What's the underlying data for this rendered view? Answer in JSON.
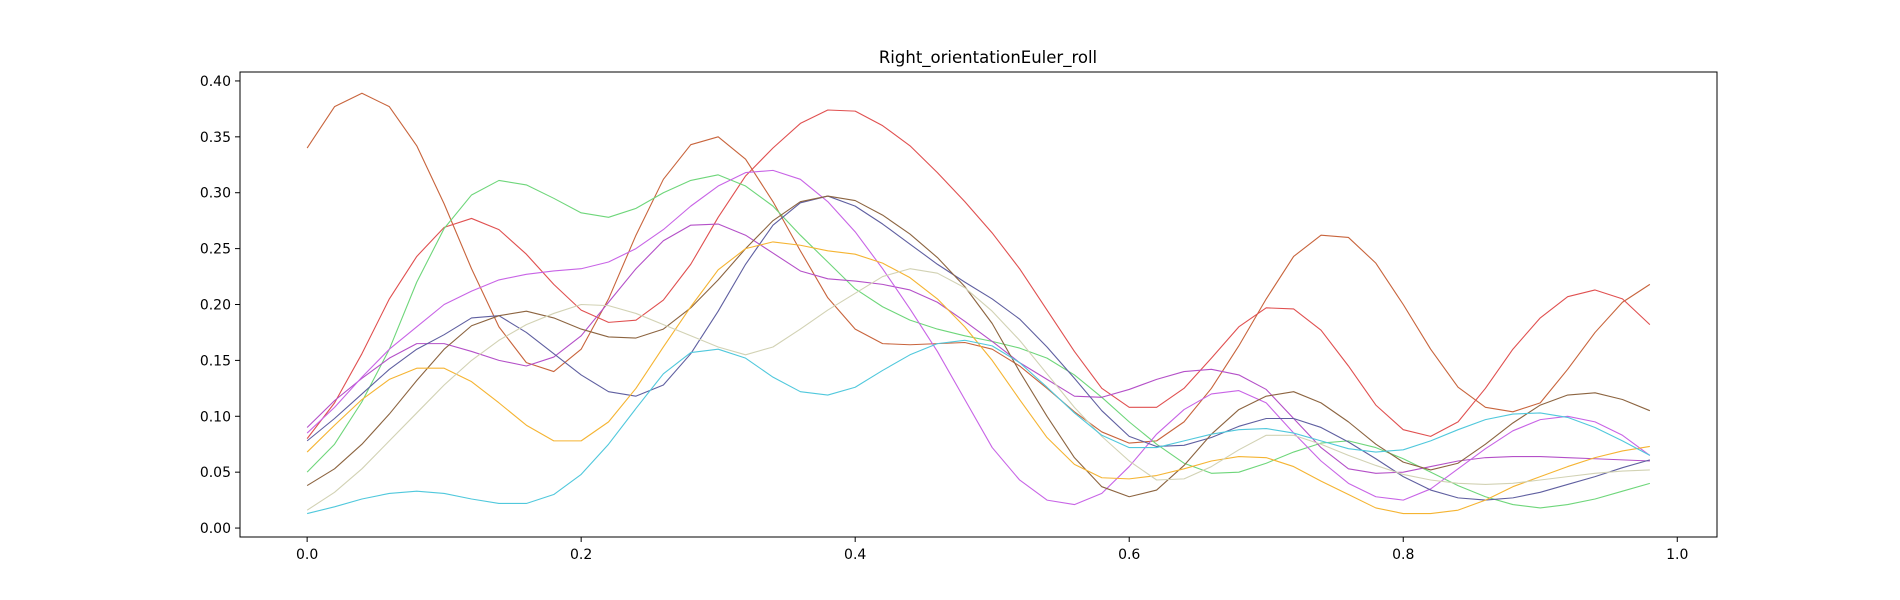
{
  "chart_data": {
    "type": "line",
    "title": "Right_orientationEuler_roll",
    "xlabel": "",
    "ylabel": "",
    "xlim": [
      -0.049,
      1.029
    ],
    "ylim": [
      -0.008,
      0.408
    ],
    "xticks": [
      0.0,
      0.2,
      0.4,
      0.6,
      0.8,
      1.0
    ],
    "xtick_labels": [
      "0.0",
      "0.2",
      "0.4",
      "0.6",
      "0.8",
      "1.0"
    ],
    "yticks": [
      0.0,
      0.05,
      0.1,
      0.15,
      0.2,
      0.25,
      0.3,
      0.35,
      0.4
    ],
    "ytick_labels": [
      "0.00",
      "0.05",
      "0.10",
      "0.15",
      "0.20",
      "0.25",
      "0.30",
      "0.35",
      "0.40"
    ],
    "grid": false,
    "legend": "none",
    "x": [
      0.0,
      0.02,
      0.04,
      0.06,
      0.08,
      0.1,
      0.12,
      0.14,
      0.16,
      0.18,
      0.2,
      0.22,
      0.24,
      0.26,
      0.28,
      0.3,
      0.32,
      0.34,
      0.36,
      0.38,
      0.4,
      0.42,
      0.44,
      0.46,
      0.48,
      0.5,
      0.52,
      0.54,
      0.56,
      0.58,
      0.6,
      0.62,
      0.64,
      0.66,
      0.68,
      0.7,
      0.72,
      0.74,
      0.76,
      0.78,
      0.8,
      0.82,
      0.84,
      0.86,
      0.88,
      0.9,
      0.92,
      0.94,
      0.96,
      0.98
    ],
    "series": [
      {
        "color": "#c8643c",
        "values": [
          0.34,
          0.377,
          0.389,
          0.377,
          0.342,
          0.29,
          0.232,
          0.18,
          0.148,
          0.14,
          0.16,
          0.205,
          0.262,
          0.312,
          0.343,
          0.35,
          0.33,
          0.292,
          0.248,
          0.206,
          0.178,
          0.165,
          0.164,
          0.165,
          0.166,
          0.16,
          0.145,
          0.125,
          0.104,
          0.086,
          0.076,
          0.078,
          0.095,
          0.125,
          0.163,
          0.205,
          0.243,
          0.262,
          0.26,
          0.237,
          0.2,
          0.16,
          0.126,
          0.108,
          0.104,
          0.112,
          0.142,
          0.175,
          0.202,
          0.218
        ]
      },
      {
        "color": "#e05050",
        "values": [
          0.08,
          0.112,
          0.156,
          0.205,
          0.243,
          0.269,
          0.277,
          0.267,
          0.245,
          0.218,
          0.195,
          0.184,
          0.186,
          0.204,
          0.236,
          0.278,
          0.315,
          0.34,
          0.362,
          0.374,
          0.373,
          0.36,
          0.342,
          0.318,
          0.292,
          0.264,
          0.232,
          0.195,
          0.158,
          0.125,
          0.108,
          0.108,
          0.125,
          0.152,
          0.18,
          0.197,
          0.196,
          0.177,
          0.145,
          0.11,
          0.088,
          0.082,
          0.095,
          0.125,
          0.16,
          0.188,
          0.207,
          0.213,
          0.205,
          0.182
        ]
      },
      {
        "color": "#6ed67a",
        "values": [
          0.05,
          0.075,
          0.113,
          0.16,
          0.22,
          0.268,
          0.298,
          0.311,
          0.307,
          0.295,
          0.282,
          0.278,
          0.286,
          0.3,
          0.311,
          0.316,
          0.306,
          0.288,
          0.262,
          0.238,
          0.214,
          0.198,
          0.186,
          0.178,
          0.172,
          0.167,
          0.161,
          0.152,
          0.137,
          0.117,
          0.095,
          0.075,
          0.058,
          0.049,
          0.05,
          0.058,
          0.068,
          0.076,
          0.078,
          0.072,
          0.062,
          0.05,
          0.038,
          0.028,
          0.021,
          0.018,
          0.021,
          0.026,
          0.033,
          0.04
        ]
      },
      {
        "color": "#b450c8",
        "values": [
          0.09,
          0.114,
          0.134,
          0.152,
          0.165,
          0.165,
          0.158,
          0.15,
          0.145,
          0.153,
          0.172,
          0.202,
          0.232,
          0.257,
          0.271,
          0.272,
          0.262,
          0.246,
          0.23,
          0.223,
          0.221,
          0.218,
          0.213,
          0.202,
          0.185,
          0.167,
          0.148,
          0.133,
          0.118,
          0.117,
          0.124,
          0.133,
          0.14,
          0.142,
          0.137,
          0.124,
          0.098,
          0.072,
          0.053,
          0.049,
          0.05,
          0.055,
          0.06,
          0.063,
          0.064,
          0.064,
          0.063,
          0.062,
          0.061,
          0.06
        ]
      },
      {
        "color": "#c864e6",
        "values": [
          0.085,
          0.108,
          0.135,
          0.16,
          0.18,
          0.2,
          0.212,
          0.222,
          0.227,
          0.23,
          0.232,
          0.238,
          0.25,
          0.267,
          0.288,
          0.306,
          0.318,
          0.32,
          0.312,
          0.292,
          0.265,
          0.232,
          0.196,
          0.158,
          0.115,
          0.072,
          0.043,
          0.025,
          0.021,
          0.031,
          0.055,
          0.084,
          0.106,
          0.12,
          0.123,
          0.112,
          0.085,
          0.06,
          0.04,
          0.028,
          0.025,
          0.035,
          0.053,
          0.071,
          0.087,
          0.097,
          0.1,
          0.095,
          0.083,
          0.065
        ]
      },
      {
        "color": "#5f5fa0",
        "values": [
          0.078,
          0.098,
          0.12,
          0.142,
          0.16,
          0.173,
          0.188,
          0.19,
          0.175,
          0.156,
          0.137,
          0.122,
          0.118,
          0.128,
          0.156,
          0.194,
          0.236,
          0.271,
          0.291,
          0.297,
          0.288,
          0.272,
          0.254,
          0.236,
          0.22,
          0.205,
          0.187,
          0.162,
          0.134,
          0.105,
          0.082,
          0.073,
          0.074,
          0.081,
          0.091,
          0.098,
          0.098,
          0.09,
          0.077,
          0.062,
          0.046,
          0.034,
          0.027,
          0.025,
          0.027,
          0.032,
          0.039,
          0.046,
          0.054,
          0.061
        ]
      },
      {
        "color": "#8c6440",
        "values": [
          0.038,
          0.053,
          0.075,
          0.102,
          0.132,
          0.16,
          0.181,
          0.19,
          0.194,
          0.188,
          0.178,
          0.171,
          0.17,
          0.178,
          0.197,
          0.222,
          0.25,
          0.275,
          0.292,
          0.297,
          0.293,
          0.28,
          0.263,
          0.242,
          0.216,
          0.183,
          0.14,
          0.1,
          0.063,
          0.037,
          0.028,
          0.034,
          0.056,
          0.084,
          0.106,
          0.118,
          0.122,
          0.112,
          0.095,
          0.075,
          0.059,
          0.052,
          0.058,
          0.075,
          0.094,
          0.11,
          0.119,
          0.121,
          0.115,
          0.105
        ]
      },
      {
        "color": "#f5b432",
        "values": [
          0.068,
          0.092,
          0.115,
          0.133,
          0.143,
          0.143,
          0.131,
          0.112,
          0.092,
          0.078,
          0.078,
          0.095,
          0.125,
          0.162,
          0.198,
          0.231,
          0.25,
          0.256,
          0.253,
          0.248,
          0.245,
          0.237,
          0.224,
          0.205,
          0.18,
          0.15,
          0.115,
          0.081,
          0.057,
          0.045,
          0.044,
          0.047,
          0.053,
          0.06,
          0.064,
          0.063,
          0.055,
          0.042,
          0.03,
          0.018,
          0.013,
          0.013,
          0.016,
          0.025,
          0.037,
          0.046,
          0.055,
          0.063,
          0.069,
          0.073
        ]
      },
      {
        "color": "#d2d2b4",
        "values": [
          0.016,
          0.032,
          0.053,
          0.078,
          0.103,
          0.128,
          0.15,
          0.168,
          0.182,
          0.192,
          0.2,
          0.199,
          0.192,
          0.182,
          0.172,
          0.162,
          0.155,
          0.162,
          0.178,
          0.195,
          0.21,
          0.225,
          0.232,
          0.228,
          0.215,
          0.194,
          0.168,
          0.138,
          0.108,
          0.082,
          0.06,
          0.043,
          0.044,
          0.055,
          0.07,
          0.083,
          0.083,
          0.075,
          0.065,
          0.056,
          0.048,
          0.043,
          0.04,
          0.039,
          0.04,
          0.043,
          0.046,
          0.049,
          0.051,
          0.052
        ]
      },
      {
        "color": "#50c8dc",
        "values": [
          0.013,
          0.019,
          0.026,
          0.031,
          0.033,
          0.031,
          0.026,
          0.022,
          0.022,
          0.03,
          0.048,
          0.075,
          0.107,
          0.138,
          0.157,
          0.16,
          0.152,
          0.135,
          0.122,
          0.119,
          0.126,
          0.141,
          0.155,
          0.165,
          0.168,
          0.163,
          0.148,
          0.126,
          0.103,
          0.083,
          0.072,
          0.072,
          0.078,
          0.084,
          0.088,
          0.089,
          0.085,
          0.078,
          0.071,
          0.068,
          0.07,
          0.078,
          0.088,
          0.097,
          0.102,
          0.103,
          0.099,
          0.09,
          0.078,
          0.065
        ]
      }
    ]
  }
}
